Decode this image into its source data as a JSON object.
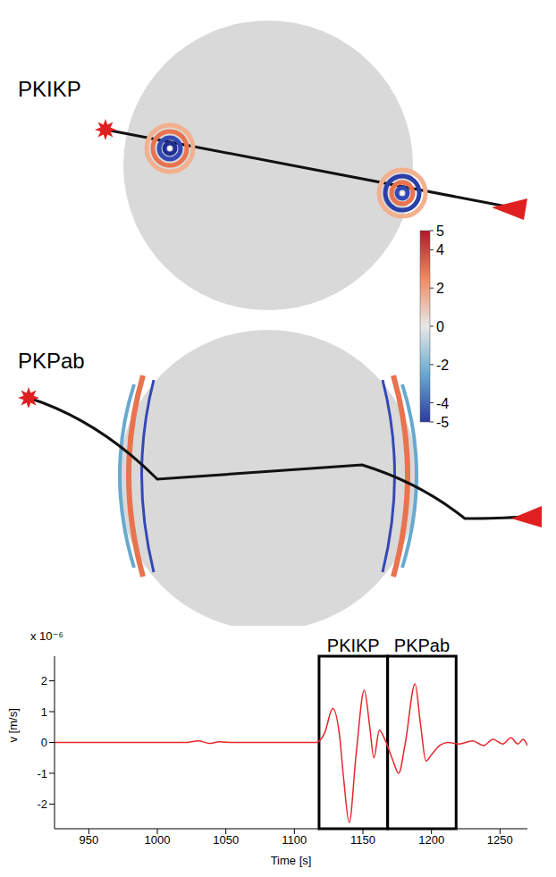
{
  "panels": [
    {
      "label": "PKIKP"
    },
    {
      "label": "PKPab"
    }
  ],
  "colorbar": {
    "range": [
      -5,
      5
    ],
    "ticks": [
      5,
      4,
      2,
      0,
      -2,
      -4,
      -5
    ]
  },
  "chart_data": {
    "type": "line",
    "xlabel": "Time [s]",
    "ylabel": "v [m/s]",
    "y_multiplier": "x 10⁻⁶",
    "x": [
      925,
      1000,
      1020,
      1030,
      1038,
      1045,
      1055,
      1110,
      1116,
      1122,
      1128,
      1133,
      1136,
      1140,
      1145,
      1151,
      1155,
      1158,
      1162,
      1166,
      1172,
      1176,
      1181,
      1188,
      1192,
      1196,
      1200,
      1206,
      1212,
      1220,
      1230,
      1238,
      1245,
      1252,
      1258,
      1263,
      1267,
      1270
    ],
    "values": [
      0,
      0,
      0,
      0.05,
      -0.03,
      0.02,
      0,
      0,
      0,
      0.3,
      1.1,
      0.2,
      -1.2,
      -2.6,
      -0.4,
      1.7,
      0.5,
      -0.5,
      0.4,
      0.1,
      -0.6,
      -1.0,
      0,
      1.9,
      0.6,
      -0.6,
      -0.4,
      -0.1,
      0,
      -0.05,
      0.05,
      -0.1,
      0.1,
      -0.05,
      0.15,
      -0.05,
      0.1,
      -0.1
    ],
    "color": "#e8262b",
    "xlim": [
      925,
      1270
    ],
    "xticks": [
      950,
      1000,
      1050,
      1100,
      1150,
      1200,
      1250
    ],
    "ylim": [
      -2.8,
      2.8
    ],
    "yticks": [
      -2,
      -1,
      0,
      1,
      2
    ],
    "grid": false,
    "annotations": [
      {
        "text": "PKIKP",
        "x_range": [
          1118,
          1168
        ]
      },
      {
        "text": "PKPab",
        "x_range": [
          1168,
          1218
        ]
      }
    ]
  }
}
